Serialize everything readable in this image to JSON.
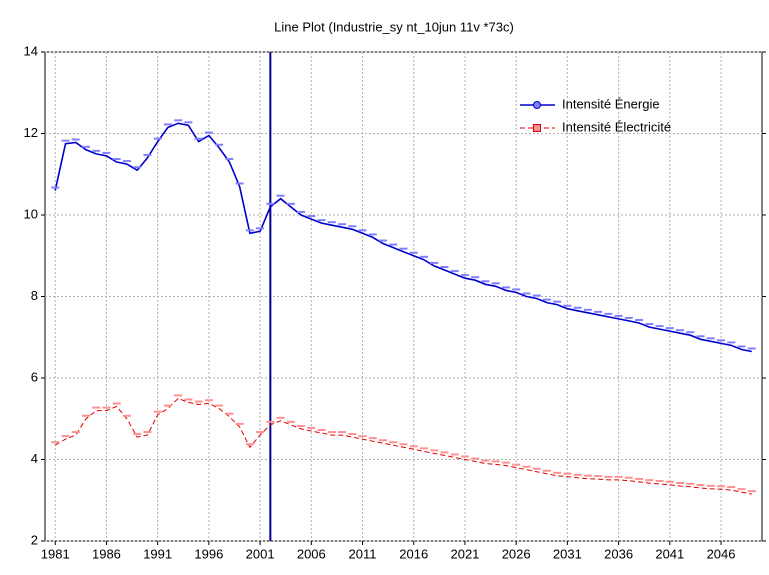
{
  "chart_data": {
    "type": "line",
    "title": "Line Plot (Industrie_sy nt_10jun 11v *73c)",
    "x": [
      1981,
      1982,
      1983,
      1984,
      1985,
      1986,
      1987,
      1988,
      1989,
      1990,
      1991,
      1992,
      1993,
      1994,
      1995,
      1996,
      1997,
      1998,
      1999,
      2000,
      2001,
      2002,
      2003,
      2004,
      2005,
      2006,
      2007,
      2008,
      2009,
      2010,
      2011,
      2012,
      2013,
      2014,
      2015,
      2016,
      2017,
      2018,
      2019,
      2020,
      2021,
      2022,
      2023,
      2024,
      2025,
      2026,
      2027,
      2028,
      2029,
      2030,
      2031,
      2032,
      2033,
      2034,
      2035,
      2036,
      2037,
      2038,
      2039,
      2040,
      2041,
      2042,
      2043,
      2044,
      2045,
      2046,
      2047,
      2048,
      2049
    ],
    "series": [
      {
        "name": "Intensité Énergie",
        "color": "#0000cc",
        "dash": false,
        "marker": "circle",
        "values": [
          10.6,
          11.75,
          11.78,
          11.6,
          11.5,
          11.45,
          11.3,
          11.25,
          11.1,
          11.4,
          11.8,
          12.15,
          12.25,
          12.2,
          11.8,
          11.95,
          11.65,
          11.3,
          10.7,
          9.55,
          9.6,
          10.2,
          10.4,
          10.2,
          10.0,
          9.9,
          9.8,
          9.75,
          9.7,
          9.65,
          9.55,
          9.45,
          9.3,
          9.2,
          9.1,
          9.0,
          8.9,
          8.75,
          8.65,
          8.55,
          8.45,
          8.4,
          8.3,
          8.25,
          8.15,
          8.1,
          8.0,
          7.95,
          7.85,
          7.8,
          7.7,
          7.65,
          7.6,
          7.55,
          7.5,
          7.45,
          7.4,
          7.35,
          7.25,
          7.2,
          7.15,
          7.1,
          7.05,
          6.95,
          6.9,
          6.85,
          6.8,
          6.7,
          6.65
        ]
      },
      {
        "name": "Intensité Électricité",
        "color": "#e00000",
        "dash": true,
        "marker": "square",
        "values": [
          4.35,
          4.5,
          4.6,
          5.0,
          5.2,
          5.2,
          5.3,
          5.0,
          4.55,
          4.6,
          5.1,
          5.25,
          5.5,
          5.4,
          5.35,
          5.38,
          5.25,
          5.05,
          4.8,
          4.3,
          4.6,
          4.85,
          4.95,
          4.85,
          4.75,
          4.7,
          4.65,
          4.6,
          4.6,
          4.55,
          4.5,
          4.45,
          4.4,
          4.35,
          4.3,
          4.25,
          4.2,
          4.15,
          4.1,
          4.05,
          4.0,
          3.95,
          3.9,
          3.88,
          3.85,
          3.8,
          3.75,
          3.7,
          3.65,
          3.6,
          3.58,
          3.55,
          3.53,
          3.52,
          3.5,
          3.5,
          3.48,
          3.45,
          3.42,
          3.4,
          3.38,
          3.35,
          3.33,
          3.3,
          3.28,
          3.27,
          3.25,
          3.2,
          3.15
        ]
      }
    ],
    "vline": 2002,
    "xlim": [
      1980,
      2050
    ],
    "xticks": [
      1981,
      1986,
      1991,
      1996,
      2001,
      2006,
      2011,
      2016,
      2021,
      2026,
      2031,
      2036,
      2041,
      2046
    ],
    "ylim": [
      2,
      14
    ],
    "yticks": [
      2,
      4,
      6,
      8,
      10,
      12,
      14
    ],
    "grid": true,
    "legend": "upper right"
  }
}
